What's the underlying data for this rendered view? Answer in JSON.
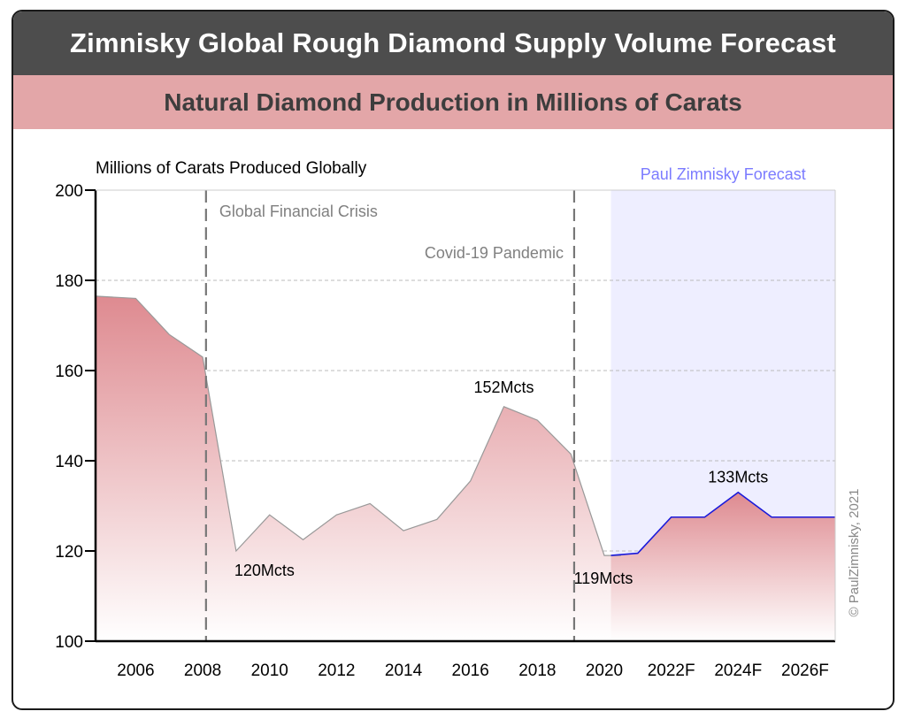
{
  "header": {
    "title": "Zimnisky Global Rough Diamond Supply Volume Forecast",
    "subtitle": "Natural Diamond Production in Millions of Carats"
  },
  "chart_data": {
    "type": "area",
    "title": "Zimnisky Global Rough Diamond Supply Volume Forecast",
    "subtitle": "Natural Diamond Production in Millions of Carats",
    "ylabel": "Millions of Carats Produced Globally",
    "xlabel": "",
    "ylim": [
      100,
      200
    ],
    "yticks": [
      100,
      120,
      140,
      160,
      180,
      200
    ],
    "xlim": [
      2004.8,
      2026.9
    ],
    "xtick_values": [
      2006,
      2008,
      2010,
      2012,
      2014,
      2016,
      2018,
      2020,
      2022,
      2024,
      2026
    ],
    "xtick_labels": [
      "2006",
      "2008",
      "2010",
      "2012",
      "2014",
      "2016",
      "2018",
      "2020",
      "2022F",
      "2024F",
      "2026F"
    ],
    "grid": "horizontal-dashed",
    "forecast_region": {
      "label": "Paul Zimnisky Forecast",
      "from": 2020.2,
      "to": 2026.9,
      "color": "#eeeeff"
    },
    "events": [
      {
        "x": 2008.1,
        "label": "Global Financial Crisis"
      },
      {
        "x": 2019.1,
        "label": "Covid-19 Pandemic"
      }
    ],
    "series": [
      {
        "values": [
          {
            "x": 2004.8,
            "y": 176.5
          },
          {
            "x": 2006.0,
            "y": 176.0
          },
          {
            "x": 2007.0,
            "y": 168.0
          },
          {
            "x": 2008.0,
            "y": 163.0
          },
          {
            "x": 2009.0,
            "y": 120.0
          },
          {
            "x": 2010.0,
            "y": 128.0
          },
          {
            "x": 2011.0,
            "y": 122.5
          },
          {
            "x": 2012.0,
            "y": 128.0
          },
          {
            "x": 2013.0,
            "y": 130.5
          },
          {
            "x": 2014.0,
            "y": 124.5
          },
          {
            "x": 2015.0,
            "y": 127.0
          },
          {
            "x": 2016.0,
            "y": 135.5
          },
          {
            "x": 2017.0,
            "y": 152.0
          },
          {
            "x": 2018.0,
            "y": 149.0
          },
          {
            "x": 2019.0,
            "y": 141.5
          },
          {
            "x": 2020.0,
            "y": 119.0
          },
          {
            "x": 2020.5,
            "y": 119.0
          }
        ]
      },
      {
        "forecast": true,
        "values": [
          {
            "x": 2020.2,
            "y": 119.0
          },
          {
            "x": 2021.0,
            "y": 119.5
          },
          {
            "x": 2022.0,
            "y": 127.5
          },
          {
            "x": 2023.0,
            "y": 127.5
          },
          {
            "x": 2024.0,
            "y": 133.0
          },
          {
            "x": 2025.0,
            "y": 127.5
          },
          {
            "x": 2026.0,
            "y": 127.5
          },
          {
            "x": 2026.9,
            "y": 127.5
          }
        ]
      }
    ],
    "annotations": [
      {
        "text": "120Mcts",
        "x": 2009.0,
        "y": 120.0
      },
      {
        "text": "152Mcts",
        "x": 2017.0,
        "y": 152.0
      },
      {
        "text": "119Mcts",
        "x": 2020.0,
        "y": 119.0
      },
      {
        "text": "133Mcts",
        "x": 2024.0,
        "y": 133.0
      }
    ],
    "colors": {
      "area_top": "#de8a90",
      "area_bottom": "#ffffff",
      "actual_line": "#999999",
      "forecast_line": "#1a1adb",
      "forecast_label": "#7b7bff",
      "event_text": "#808080"
    },
    "watermark": "© PaulZimnisky, 2021"
  }
}
